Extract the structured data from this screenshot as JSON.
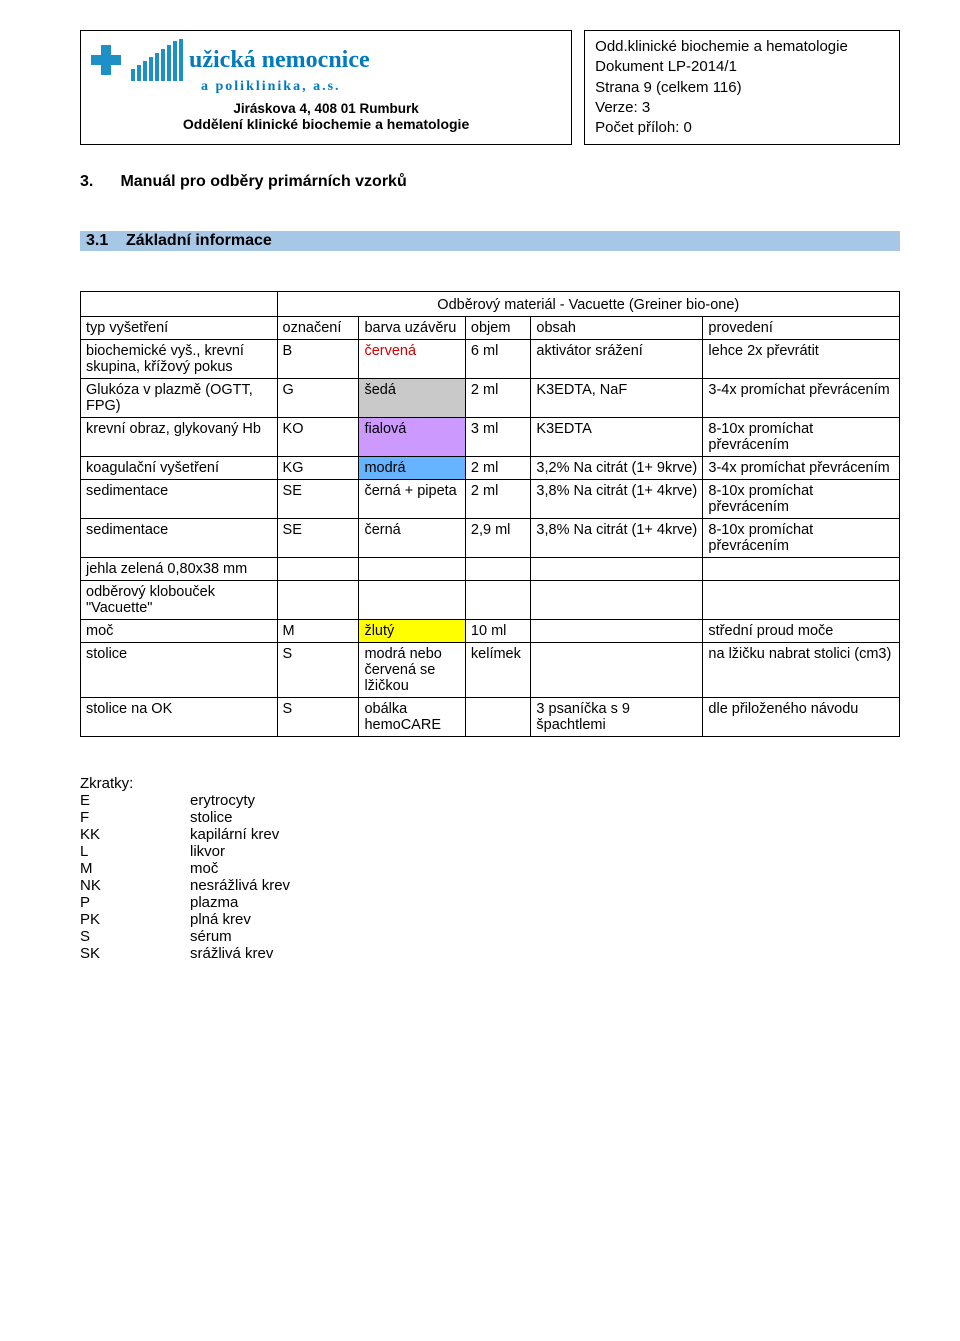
{
  "header": {
    "logo_main": "užická nemocnice",
    "logo_sub": "a poliklinika, a.s.",
    "addr": "Jiráskova 4, 408 01 Rumburk",
    "dept": "Oddělení klinické biochemie a hematologie",
    "info_l1": "Odd.klinické biochemie a hematologie",
    "info_l2": "Dokument LP-2014/1",
    "info_l3": "Strana 9 (celkem 116)",
    "info_l4": "Verze: 3",
    "info_l5": "Počet příloh: 0"
  },
  "section": {
    "num": "3.",
    "title": "Manuál pro odběry primárních vzorků"
  },
  "subsection": {
    "num": "3.1",
    "title": "Základní informace"
  },
  "table": {
    "caption": "Odběrový materiál - Vacuette (Greiner bio-one)",
    "head": {
      "c1": "typ vyšetření",
      "c2": "označení",
      "c3": "barva uzávěru",
      "c4": "objem",
      "c5": "obsah",
      "c6": "provedení"
    },
    "rows": [
      {
        "c1": "biochemické vyš., krevní skupina, křížový pokus",
        "c2": "B",
        "c3": "červená",
        "c3_class": "c-red",
        "c4": "6 ml",
        "c5": "aktivátor srážení",
        "c6": "lehce 2x převrátit"
      },
      {
        "c1": "Glukóza v plazmě (OGTT, FPG)",
        "c2": "G",
        "c3": "šedá",
        "c3_cell": "c-grey",
        "c4": "2 ml",
        "c5": "K3EDTA, NaF",
        "c6": "3-4x promíchat převrácením"
      },
      {
        "c1": "krevní obraz, glykovaný Hb",
        "c2": "KO",
        "c3": "fialová",
        "c3_cell": "c-violet",
        "c4": "3 ml",
        "c5": "K3EDTA",
        "c6": "8-10x promíchat převrácením"
      },
      {
        "c1": "koagulační vyšetření",
        "c2": "KG",
        "c3": "modrá",
        "c3_cell": "c-blue",
        "c4": "2 ml",
        "c5": "3,2% Na citrát (1+ 9krve)",
        "c6": "3-4x promíchat převrácením"
      },
      {
        "c1": "sedimentace",
        "c2": "SE",
        "c3": "černá + pipeta",
        "c4": "2 ml",
        "c5": "3,8% Na citrát (1+ 4krve)",
        "c6": "8-10x promíchat převrácením"
      },
      {
        "c1": "sedimentace",
        "c2": "SE",
        "c3": "černá",
        "c4": "2,9 ml",
        "c5": "3,8% Na citrát (1+ 4krve)",
        "c6": "8-10x promíchat převrácením"
      },
      {
        "c1": "jehla zelená 0,80x38 mm",
        "c2": "",
        "c3": "",
        "c4": "",
        "c5": "",
        "c6": ""
      },
      {
        "c1": "odběrový klobouček \"Vacuette\"",
        "c2": "",
        "c3": "",
        "c4": "",
        "c5": "",
        "c6": ""
      },
      {
        "c1": "moč",
        "c2": "M",
        "c3": "žlutý",
        "c3_cell": "c-yellow",
        "c4": "10 ml",
        "c5": "",
        "c6": "střední proud moče"
      },
      {
        "c1": "stolice",
        "c2": "S",
        "c3": "modrá nebo červená se lžičkou",
        "c4": "kelímek",
        "c5": "",
        "c6": "na lžičku nabrat stolici (cm3)"
      },
      {
        "c1": "stolice na OK",
        "c2": "S",
        "c3": "obálka hemoCARE",
        "c4": "",
        "c5": "3 psaníčka s 9 špachtlemi",
        "c6": "dle přiloženého návodu"
      }
    ]
  },
  "abbrev": {
    "title": "Zkratky:",
    "items": [
      {
        "k": "E",
        "v": "erytrocyty"
      },
      {
        "k": "F",
        "v": "stolice"
      },
      {
        "k": "KK",
        "v": "kapilární krev"
      },
      {
        "k": "L",
        "v": "likvor"
      },
      {
        "k": "M",
        "v": "moč"
      },
      {
        "k": "NK",
        "v": "nesrážlivá krev"
      },
      {
        "k": "P",
        "v": "plazma"
      },
      {
        "k": "PK",
        "v": "plná krev"
      },
      {
        "k": "S",
        "v": "sérum"
      },
      {
        "k": "SK",
        "v": "srážlivá krev"
      }
    ]
  }
}
